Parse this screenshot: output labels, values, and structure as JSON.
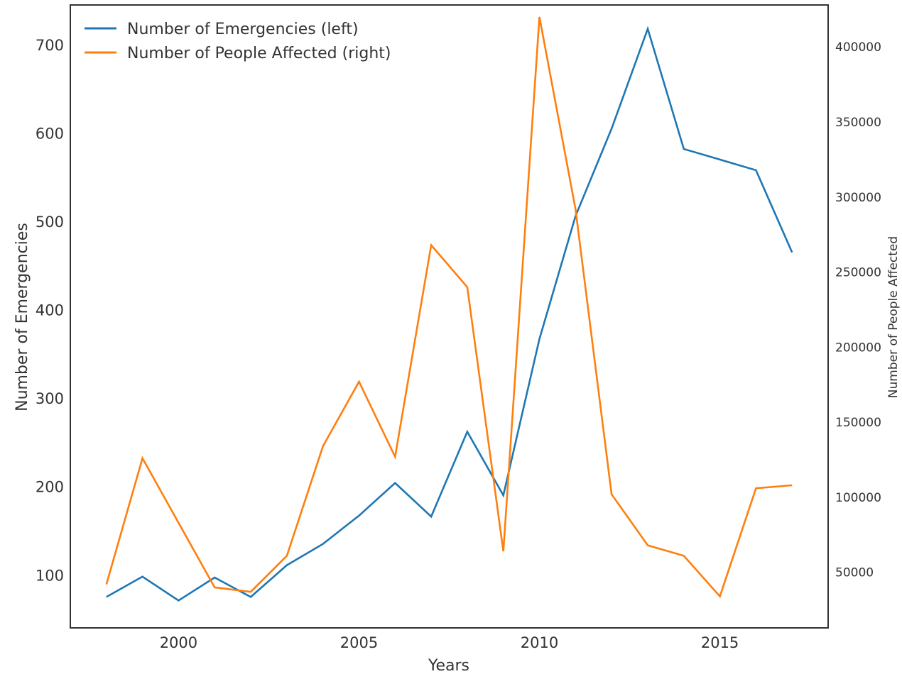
{
  "chart_data": {
    "type": "line",
    "title": "",
    "xlabel": "Years",
    "ylabel_left": "Number of Emergencies",
    "ylabel_right": "Number of People Affected",
    "xlim": [
      1997,
      2018
    ],
    "ylim_left": [
      40,
      745
    ],
    "ylim_right": [
      13000,
      428000
    ],
    "x_ticks": [
      2000,
      2005,
      2010,
      2015
    ],
    "y_ticks_left": [
      100,
      200,
      300,
      400,
      500,
      600,
      700
    ],
    "y_ticks_right": [
      50000,
      100000,
      150000,
      200000,
      250000,
      300000,
      350000,
      400000
    ],
    "grid": false,
    "legend_position": "top-left",
    "x": [
      1998,
      1999,
      2000,
      2001,
      2002,
      2003,
      2004,
      2005,
      2006,
      2007,
      2008,
      2009,
      2010,
      2011,
      2012,
      2013,
      2014,
      2015,
      2016,
      2017
    ],
    "series": [
      {
        "name": "Number of Emergencies (left)",
        "axis": "left",
        "color": "#1f77b4",
        "values": [
          75,
          98,
          71,
          97,
          75,
          111,
          135,
          167,
          204,
          166,
          262,
          190,
          367,
          506,
          605,
          718,
          582,
          570,
          558,
          465
        ]
      },
      {
        "name": "Number of People Affected (right)",
        "axis": "right",
        "color": "#ff7f0e",
        "values": [
          42000,
          126000,
          83000,
          40000,
          37000,
          61000,
          134000,
          177000,
          127000,
          268000,
          240000,
          64000,
          420000,
          292000,
          102000,
          68000,
          61000,
          34000,
          106000,
          108000
        ]
      }
    ]
  }
}
